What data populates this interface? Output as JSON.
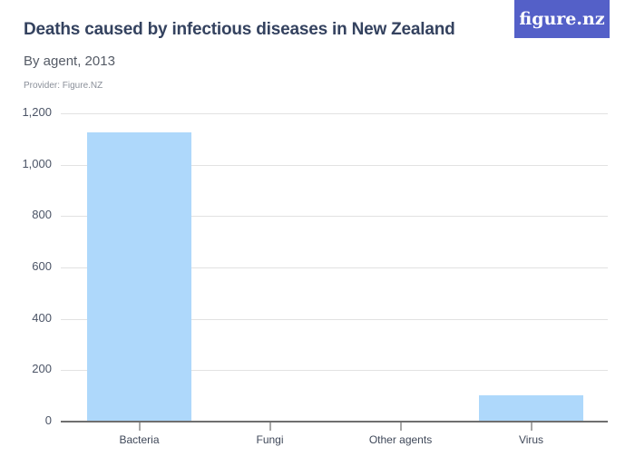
{
  "header": {
    "title": "Deaths caused by infectious diseases in New Zealand",
    "subtitle": "By agent, 2013",
    "provider": "Provider: Figure.NZ",
    "logo_text": "figure.nz"
  },
  "colors": {
    "bar": "#aed8fb",
    "title": "#34425f",
    "logo_bg": "#5460c8"
  },
  "chart_data": {
    "type": "bar",
    "title": "Deaths caused by infectious diseases in New Zealand",
    "subtitle": "By agent, 2013",
    "categories": [
      "Bacteria",
      "Fungi",
      "Other agents",
      "Virus"
    ],
    "values": [
      1126,
      3,
      3,
      102
    ],
    "xlabel": "",
    "ylabel": "",
    "ylim": [
      0,
      1200
    ],
    "yticks": [
      0,
      200,
      400,
      600,
      800,
      1000,
      1200
    ],
    "ytick_labels": [
      "0",
      "200",
      "400",
      "600",
      "800",
      "1,000",
      "1,200"
    ],
    "grid": true,
    "legend": null
  }
}
